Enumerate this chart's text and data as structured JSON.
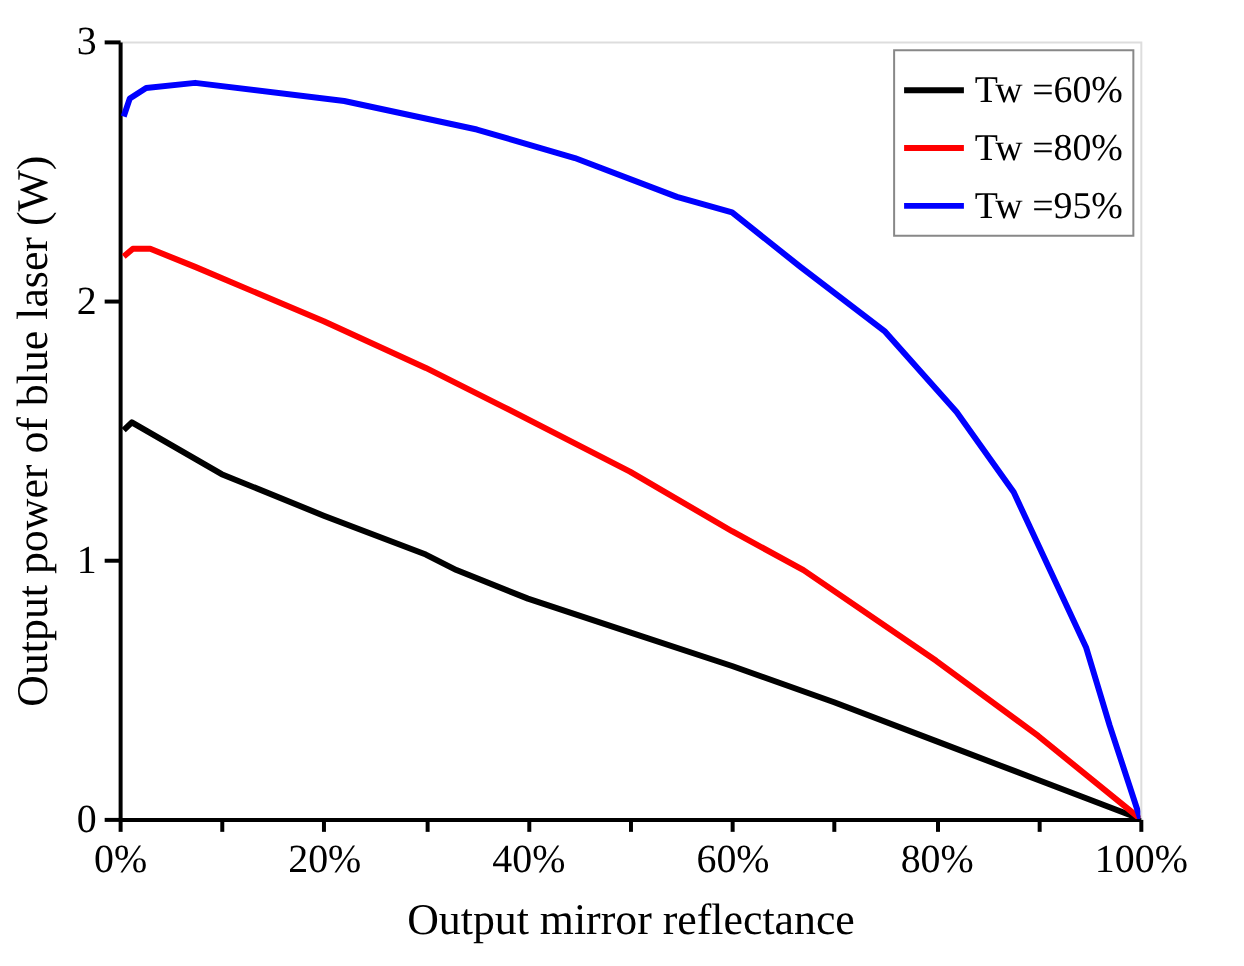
{
  "chart_data": {
    "type": "line",
    "xlabel": "Output mirror reflectance",
    "ylabel": "Output power of blue laser (W)",
    "xlim": [
      0,
      1
    ],
    "ylim": [
      0,
      3
    ],
    "xticks": [
      {
        "value": 0,
        "label": "0%"
      },
      {
        "value": 0.1,
        "label": null
      },
      {
        "value": 0.2,
        "label": "20%"
      },
      {
        "value": 0.3,
        "label": null
      },
      {
        "value": 0.4,
        "label": "40%"
      },
      {
        "value": 0.5,
        "label": null
      },
      {
        "value": 0.6,
        "label": "60%"
      },
      {
        "value": 0.7,
        "label": null
      },
      {
        "value": 0.8,
        "label": "80%"
      },
      {
        "value": 0.9,
        "label": null
      },
      {
        "value": 1,
        "label": "100%"
      }
    ],
    "yticks": [
      0,
      1,
      2,
      3
    ],
    "grid": false,
    "legend": "top right",
    "marker": "none",
    "line_style": "solid",
    "series": [
      {
        "name": "Tw =60%",
        "color": "#000000",
        "x": [
          0.004,
          0.012,
          0.1,
          0.2,
          0.3,
          0.33,
          0.4,
          0.5,
          0.6,
          0.7,
          0.8,
          0.9,
          1
        ],
        "values": [
          1.5,
          1.53,
          1.33,
          1.17,
          1.02,
          0.96,
          0.85,
          0.72,
          0.59,
          0.45,
          0.3,
          0.15,
          0
        ]
      },
      {
        "name": "Tw =80%",
        "color": "#ff0000",
        "x": [
          0.004,
          0.013,
          0.03,
          0.074,
          0.2,
          0.3,
          0.376,
          0.5,
          0.6,
          0.67,
          0.8,
          0.9,
          1
        ],
        "values": [
          2.17,
          2.2,
          2.2,
          2.13,
          1.92,
          1.74,
          1.59,
          1.34,
          1.11,
          0.96,
          0.61,
          0.32,
          0
        ]
      },
      {
        "name": "Tw =95%",
        "color": "#0000ff",
        "x": [
          0.004,
          0.01,
          0.026,
          0.074,
          0.22,
          0.35,
          0.446,
          0.546,
          0.6,
          0.667,
          0.75,
          0.82,
          0.876,
          0.947,
          0.97,
          1
        ],
        "values": [
          2.71,
          2.78,
          2.82,
          2.84,
          2.77,
          2.66,
          2.55,
          2.4,
          2.34,
          2.13,
          1.88,
          1.57,
          1.26,
          0.66,
          0.36,
          0
        ]
      }
    ]
  }
}
